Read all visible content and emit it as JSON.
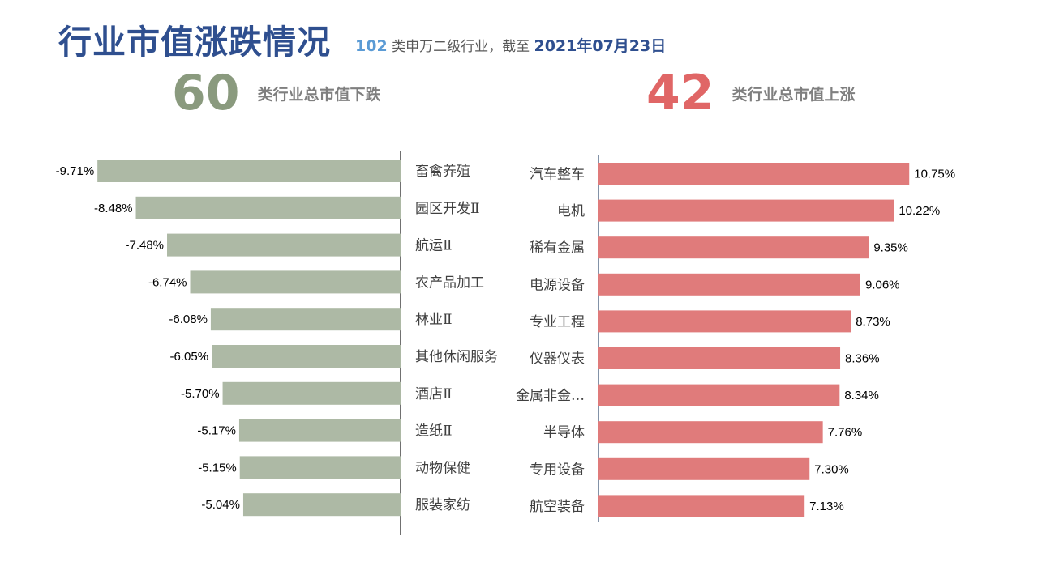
{
  "title": "行业市值涨跌情况",
  "subtitle": {
    "count": "102",
    "text": " 类申万二级行业，截至 ",
    "date": "2021年07月23日"
  },
  "summary_left": {
    "number": "60",
    "text": "类行业总市值下跌"
  },
  "summary_right": {
    "number": "42",
    "text": "类行业总市值上涨"
  },
  "colors": {
    "down": "#adb9a5",
    "up": "#e07b7b",
    "title": "#2f4f8f"
  },
  "chart_data": [
    {
      "type": "bar",
      "orientation": "horizontal",
      "categories": [
        "畜禽养殖",
        "园区开发Ⅱ",
        "航运Ⅱ",
        "农产品加工",
        "林业Ⅱ",
        "其他休闲服务",
        "酒店Ⅱ",
        "造纸Ⅱ",
        "动物保健",
        "服装家纺"
      ],
      "values": [
        -9.71,
        -8.48,
        -7.48,
        -6.74,
        -6.08,
        -6.05,
        -5.7,
        -5.17,
        -5.15,
        -5.04
      ],
      "labels": [
        "-9.71%",
        "-8.48%",
        "-7.48%",
        "-6.74%",
        "-6.08%",
        "-6.05%",
        "-5.70%",
        "-5.17%",
        "-5.15%",
        "-5.04%"
      ],
      "unit": "%"
    },
    {
      "type": "bar",
      "orientation": "horizontal",
      "categories": [
        "汽车整车",
        "电机",
        "稀有金属",
        "电源设备",
        "专业工程",
        "仪器仪表",
        "金属非金…",
        "半导体",
        "专用设备",
        "航空装备"
      ],
      "values": [
        10.75,
        10.22,
        9.35,
        9.06,
        8.73,
        8.36,
        8.34,
        7.76,
        7.3,
        7.13
      ],
      "labels": [
        "10.75%",
        "10.22%",
        "9.35%",
        "9.06%",
        "8.73%",
        "8.36%",
        "8.34%",
        "7.76%",
        "7.30%",
        "7.13%"
      ],
      "unit": "%"
    }
  ]
}
